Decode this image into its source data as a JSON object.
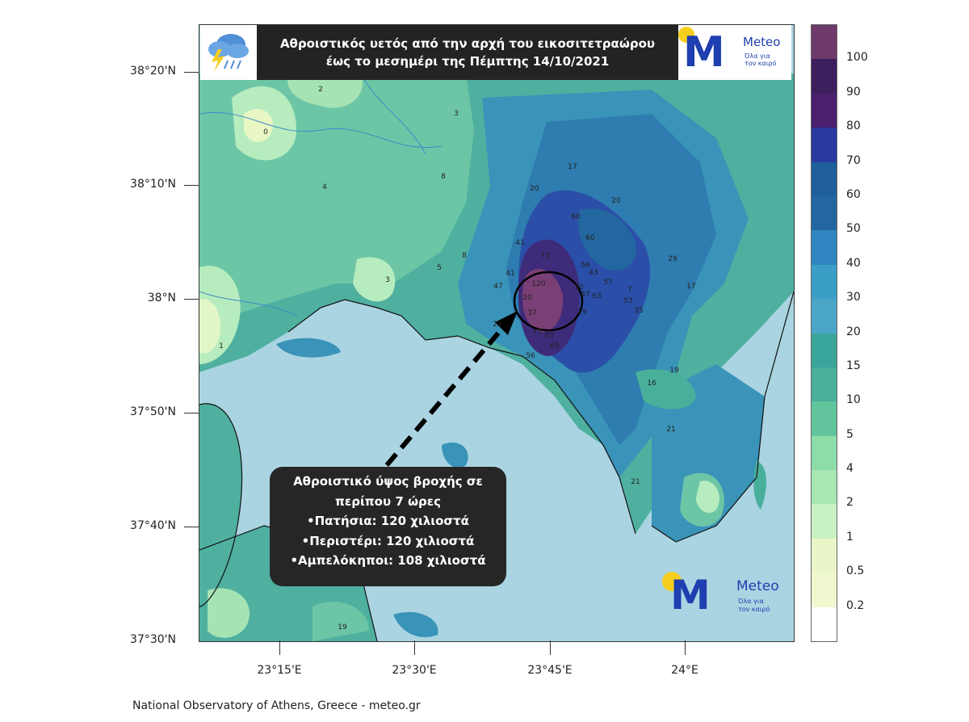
{
  "title": {
    "line1": "Αθροιστικός υετός από την αρχή του εικοσιτετραώρου",
    "line2": "έως το μεσημέρι της Πέμπτης 14/10/2021"
  },
  "logo": {
    "brand": "Meteo",
    "tagline_1": "Όλα για",
    "tagline_2": "τον καιρό",
    "sun_color": "#f6cf1e",
    "brand_color": "#1f3fb0"
  },
  "info_box": {
    "lines": [
      "Αθροιστικό ύψος βροχής σε",
      "περίπου 7 ώρες",
      "•Πατήσια: 120 χιλιοστά",
      "•Περιστέρι: 120 χιλιοστά",
      "•Αμπελόκηποι: 108 χιλιοστά"
    ]
  },
  "axes": {
    "latitudes": [
      "38°20'N",
      "38°10'N",
      "38°N",
      "37°50'N",
      "37°40'N",
      "37°30'N"
    ],
    "longitudes": [
      "23°15'E",
      "23°30'E",
      "23°45'E",
      "24°E"
    ]
  },
  "legend": {
    "labels": [
      "100",
      "90",
      "80",
      "70",
      "60",
      "50",
      "40",
      "30",
      "20",
      "15",
      "10",
      "5",
      "4",
      "2",
      "1",
      "0.5",
      "0.2"
    ],
    "colors": [
      "#6d3a6b",
      "#3e1f5e",
      "#4a1f6e",
      "#2a3aa0",
      "#1f5f9c",
      "#2367a0",
      "#2f86c0",
      "#3a9ec6",
      "#4aa6c6",
      "#3aa59a",
      "#48b09a",
      "#62c49c",
      "#8edca8",
      "#a8e6b2",
      "#c9f2c4",
      "#eaf6c8",
      "#f0f8d0",
      "#ffffff"
    ]
  },
  "map_values": [
    {
      "text": "2"
    },
    {
      "text": "3"
    },
    {
      "text": "0"
    },
    {
      "text": "4"
    },
    {
      "text": "8"
    },
    {
      "text": "17"
    },
    {
      "text": "20"
    },
    {
      "text": "20"
    },
    {
      "text": "60"
    },
    {
      "text": "60"
    },
    {
      "text": "41"
    },
    {
      "text": "73"
    },
    {
      "text": "8"
    },
    {
      "text": "5"
    },
    {
      "text": "3"
    },
    {
      "text": "41"
    },
    {
      "text": "47"
    },
    {
      "text": "120"
    },
    {
      "text": "20"
    },
    {
      "text": "37"
    },
    {
      "text": "22"
    },
    {
      "text": "50"
    },
    {
      "text": "56"
    },
    {
      "text": "43"
    },
    {
      "text": "57"
    },
    {
      "text": "47"
    },
    {
      "text": "63"
    },
    {
      "text": "7"
    },
    {
      "text": "53"
    },
    {
      "text": "35"
    },
    {
      "text": "19"
    },
    {
      "text": "29"
    },
    {
      "text": "17"
    },
    {
      "text": "77"
    },
    {
      "text": "93"
    },
    {
      "text": "69"
    },
    {
      "text": "56"
    },
    {
      "text": "19"
    },
    {
      "text": "16"
    },
    {
      "text": "21"
    },
    {
      "text": "21"
    },
    {
      "text": "1"
    },
    {
      "text": "19"
    }
  ],
  "footer": "National Observatory of Athens, Greece - meteo.gr"
}
